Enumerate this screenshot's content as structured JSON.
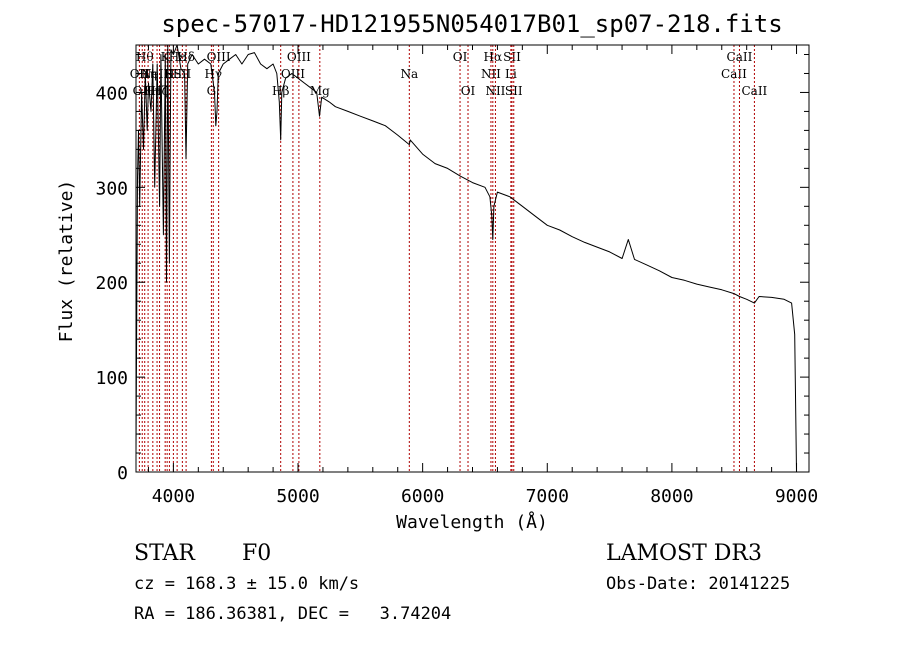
{
  "chart_data": {
    "type": "line",
    "title": "spec-57017-HD121955N054017B01_sp07-218.fits",
    "xlabel": "Wavelength (Å)",
    "ylabel": "Flux (relative)",
    "xlim": [
      3700,
      9100
    ],
    "ylim": [
      0,
      450
    ],
    "xticks": [
      4000,
      5000,
      6000,
      7000,
      8000,
      9000
    ],
    "xtick_labels": [
      "4000",
      "5000",
      "6000",
      "7000",
      "8000",
      "9000"
    ],
    "yticks": [
      0,
      100,
      200,
      300,
      400
    ],
    "ytick_labels": [
      "0",
      "100",
      "200",
      "300",
      "400"
    ],
    "series": [
      {
        "name": "spectrum",
        "color": "#000000",
        "x": [
          3700,
          3705,
          3712,
          3720,
          3730,
          3745,
          3760,
          3775,
          3790,
          3800,
          3820,
          3835,
          3850,
          3870,
          3889,
          3900,
          3920,
          3935,
          3945,
          3955,
          3968,
          3980,
          4000,
          4030,
          4060,
          4090,
          4101,
          4115,
          4150,
          4200,
          4250,
          4300,
          4330,
          4340,
          4350,
          4360,
          4400,
          4450,
          4500,
          4550,
          4600,
          4650,
          4700,
          4750,
          4800,
          4830,
          4850,
          4861,
          4870,
          4900,
          4950,
          5000,
          5050,
          5100,
          5150,
          5172,
          5190,
          5250,
          5300,
          5400,
          5500,
          5600,
          5700,
          5800,
          5893,
          5900,
          6000,
          6100,
          6200,
          6300,
          6400,
          6500,
          6540,
          6555,
          6563,
          6572,
          6600,
          6700,
          6800,
          6900,
          7000,
          7100,
          7200,
          7300,
          7400,
          7500,
          7600,
          7650,
          7700,
          7800,
          7900,
          8000,
          8100,
          8200,
          8300,
          8400,
          8498,
          8542,
          8600,
          8662,
          8700,
          8800,
          8900,
          8960,
          8985,
          9000
        ],
        "y": [
          20,
          140,
          310,
          360,
          280,
          400,
          340,
          420,
          360,
          410,
          380,
          430,
          300,
          430,
          280,
          440,
          250,
          440,
          200,
          450,
          220,
          445,
          440,
          450,
          425,
          420,
          330,
          430,
          440,
          430,
          435,
          430,
          400,
          365,
          380,
          420,
          430,
          435,
          440,
          430,
          440,
          442,
          430,
          425,
          430,
          420,
          390,
          350,
          400,
          415,
          420,
          415,
          410,
          405,
          400,
          375,
          395,
          390,
          385,
          380,
          375,
          370,
          365,
          355,
          345,
          350,
          335,
          325,
          320,
          312,
          305,
          300,
          290,
          270,
          245,
          280,
          295,
          290,
          280,
          270,
          260,
          255,
          248,
          242,
          237,
          232,
          225,
          245,
          224,
          218,
          212,
          205,
          202,
          198,
          195,
          192,
          188,
          185,
          182,
          178,
          185,
          184,
          182,
          178,
          145,
          0
        ]
      }
    ],
    "line_markers": [
      {
        "wl": 3727,
        "row": 1,
        "label": "OII"
      },
      {
        "wl": 3750,
        "row": 2,
        "label": "OII"
      },
      {
        "wl": 3770,
        "row": 0,
        "label": "Hθ"
      },
      {
        "wl": 3797,
        "row": 1,
        "label": "Hη"
      },
      {
        "wl": 3835,
        "row": 2,
        "label": "Hη"
      },
      {
        "wl": 3869,
        "row": 1,
        "label": "NeIII"
      },
      {
        "wl": 3889,
        "row": 2,
        "label": "Hζ"
      },
      {
        "wl": 3934,
        "row": 0,
        "label": "K"
      },
      {
        "wl": 3950,
        "row": 2,
        "label": "I"
      },
      {
        "wl": 3968,
        "row": 1,
        "label": "H"
      },
      {
        "wl": 4000,
        "row": 1,
        "label": "SII"
      },
      {
        "wl": 4030,
        "row": 0,
        "label": "Hε"
      },
      {
        "wl": 4072,
        "row": 1,
        "label": "SII"
      },
      {
        "wl": 4102,
        "row": 0,
        "label": "Hδ"
      },
      {
        "wl": 4305,
        "row": 2,
        "label": "G"
      },
      {
        "wl": 4320,
        "row": 1,
        "label": "Hγ"
      },
      {
        "wl": 4363,
        "row": 0,
        "label": "OIII"
      },
      {
        "wl": 4861,
        "row": 2,
        "label": "Hβ"
      },
      {
        "wl": 4959,
        "row": 1,
        "label": "OIII"
      },
      {
        "wl": 5007,
        "row": 0,
        "label": "OIII"
      },
      {
        "wl": 5175,
        "row": 2,
        "label": "Mg"
      },
      {
        "wl": 5893,
        "row": 1,
        "label": "Na"
      },
      {
        "wl": 6300,
        "row": 0,
        "label": "OI"
      },
      {
        "wl": 6364,
        "row": 2,
        "label": "OI"
      },
      {
        "wl": 6548,
        "row": 1,
        "label": "NII"
      },
      {
        "wl": 6563,
        "row": 0,
        "label": "Hα"
      },
      {
        "wl": 6584,
        "row": 2,
        "label": "NII"
      },
      {
        "wl": 6708,
        "row": 1,
        "label": "Li"
      },
      {
        "wl": 6717,
        "row": 0,
        "label": "SII"
      },
      {
        "wl": 6731,
        "row": 2,
        "label": "SII"
      },
      {
        "wl": 8498,
        "row": 1,
        "label": "CaII"
      },
      {
        "wl": 8542,
        "row": 0,
        "label": "CaII"
      },
      {
        "wl": 8662,
        "row": 2,
        "label": "CaII"
      }
    ]
  },
  "footer": {
    "object_class": "STAR",
    "subclass": "F0",
    "survey": "LAMOST DR3",
    "cz": "cz = 168.3 ± 15.0 km/s",
    "obs_date": "Obs-Date: 20141225",
    "coords": "RA = 186.36381, DEC =   3.74204"
  },
  "colors": {
    "spectrum": "#000000",
    "marker": "#b00000",
    "axes": "#000000"
  }
}
